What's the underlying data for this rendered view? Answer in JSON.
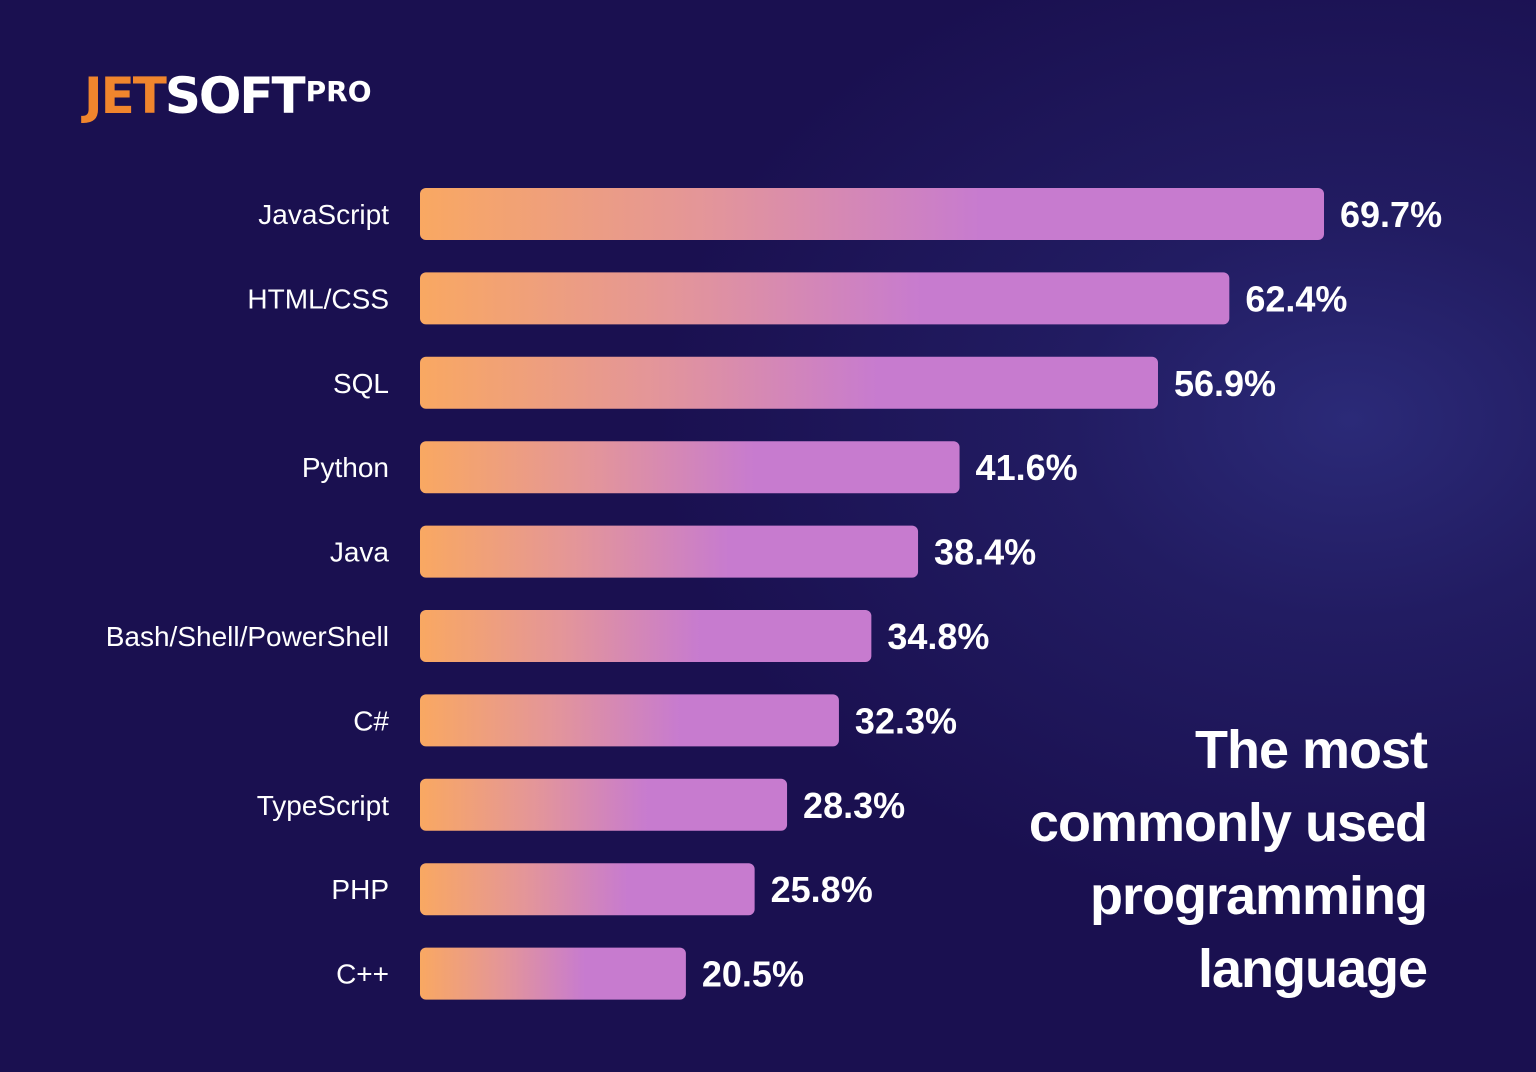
{
  "logo": {
    "part1": "JET",
    "part2": "SOFT",
    "part3": "PRO",
    "colors": {
      "jet": "#f0852d",
      "soft": "#ffffff"
    }
  },
  "title_lines": [
    "The most",
    "commonly used",
    "programming",
    "language"
  ],
  "chart_data": {
    "type": "bar",
    "orientation": "horizontal",
    "categories": [
      "JavaScript",
      "HTML/CSS",
      "SQL",
      "Python",
      "Java",
      "Bash/Shell/PowerShell",
      "C#",
      "TypeScript",
      "PHP",
      "C++"
    ],
    "values": [
      69.7,
      62.4,
      56.9,
      41.6,
      38.4,
      34.8,
      32.3,
      28.3,
      25.8,
      20.5
    ],
    "value_labels": [
      "69.7%",
      "62.4%",
      "56.9%",
      "41.6%",
      "38.4%",
      "34.8%",
      "32.3%",
      "28.3%",
      "25.8%",
      "20.5%"
    ],
    "unit": "%",
    "grid": false,
    "axes_visible": false,
    "bar_gradient": [
      "#f9a862",
      "#e3959a",
      "#c77bcf"
    ],
    "background": "#1a1050"
  }
}
